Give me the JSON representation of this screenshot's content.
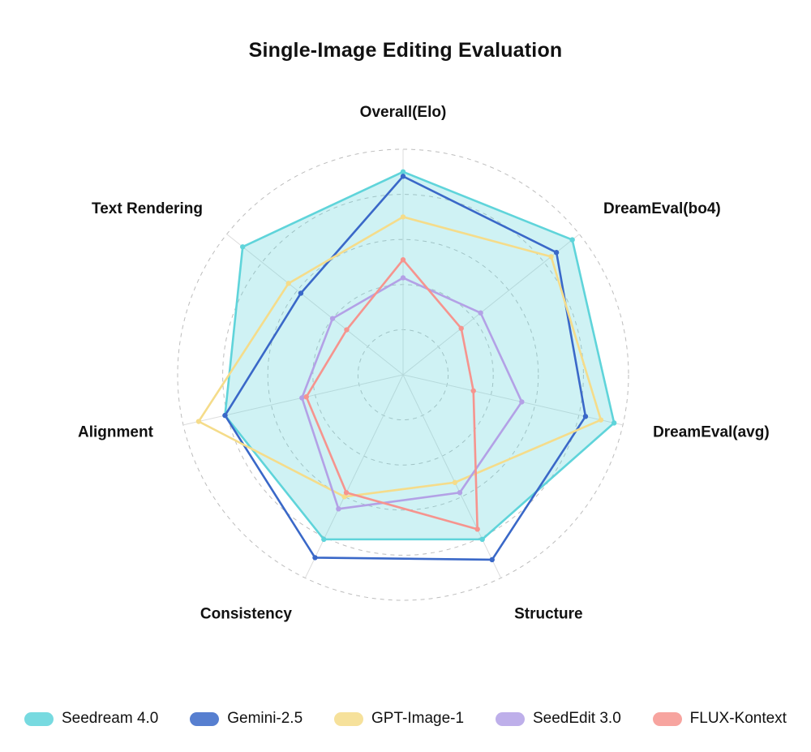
{
  "title": "Single-Image Editing Evaluation",
  "chart_data": {
    "type": "radar",
    "title": "Single-Image Editing Evaluation",
    "categories": [
      "Overall(Elo)",
      "DreamEval(bo4)",
      "DreamEval(avg)",
      "Structure",
      "Consistency",
      "Alignment",
      "Text Rendering"
    ],
    "scale": {
      "min": 0,
      "max": 1,
      "rings": 5
    },
    "grid": "dashed-circles",
    "legend_position": "bottom",
    "series": [
      {
        "name": "Seedream 4.0",
        "color": "#5FD4DA",
        "fill_opacity": 0.3,
        "values": [
          0.9,
          0.96,
          0.96,
          0.81,
          0.81,
          0.81,
          0.91
        ]
      },
      {
        "name": "Gemini-2.5",
        "color": "#3A68C8",
        "fill_opacity": 0,
        "values": [
          0.88,
          0.87,
          0.83,
          0.91,
          0.9,
          0.81,
          0.58
        ]
      },
      {
        "name": "GPT-Image-1",
        "color": "#F5DC8A",
        "fill_opacity": 0,
        "values": [
          0.7,
          0.84,
          0.9,
          0.53,
          0.6,
          0.93,
          0.65
        ]
      },
      {
        "name": "SeedEdit 3.0",
        "color": "#B3A1E6",
        "fill_opacity": 0,
        "values": [
          0.43,
          0.44,
          0.54,
          0.58,
          0.66,
          0.46,
          0.4
        ]
      },
      {
        "name": "FLUX-Kontext",
        "color": "#F6948E",
        "fill_opacity": 0,
        "values": [
          0.51,
          0.33,
          0.32,
          0.76,
          0.58,
          0.44,
          0.32
        ]
      }
    ]
  }
}
